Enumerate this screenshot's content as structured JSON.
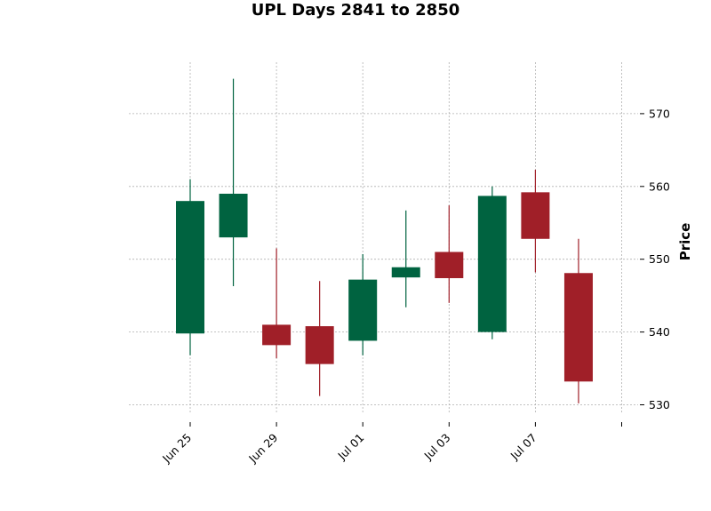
{
  "chart_data": {
    "type": "candlestick",
    "title": "UPL Days 2841 to 2850",
    "xlabel": "",
    "ylabel": "Price",
    "ylim": [
      528,
      577
    ],
    "y_ticks": [
      530,
      540,
      550,
      560,
      570
    ],
    "x_tick_labels": [
      "Jun 25",
      "Jun 29",
      "Jul 01",
      "Jul 03",
      "Jul 07",
      ""
    ],
    "grid": true,
    "y_axis_side": "right",
    "colors": {
      "up": "#006340",
      "down": "#a01f28",
      "grid": "#b0b0b0"
    },
    "candles": [
      {
        "date": "Jun 25",
        "open": 539.8,
        "high": 561.0,
        "low": 536.8,
        "close": 558.0
      },
      {
        "date": "Jun 26",
        "open": 553.0,
        "high": 574.8,
        "low": 546.3,
        "close": 559.0
      },
      {
        "date": "Jun 29",
        "open": 541.0,
        "high": 551.5,
        "low": 536.4,
        "close": 538.2
      },
      {
        "date": "Jun 30",
        "open": 540.8,
        "high": 547.0,
        "low": 531.2,
        "close": 535.6
      },
      {
        "date": "Jul 01",
        "open": 538.8,
        "high": 550.7,
        "low": 536.8,
        "close": 547.2
      },
      {
        "date": "Jul 02",
        "open": 547.5,
        "high": 556.7,
        "low": 543.4,
        "close": 548.9
      },
      {
        "date": "Jul 03",
        "open": 551.0,
        "high": 557.4,
        "low": 544.0,
        "close": 547.4
      },
      {
        "date": "Jul 06",
        "open": 540.0,
        "high": 560.0,
        "low": 539.0,
        "close": 558.7
      },
      {
        "date": "Jul 07",
        "open": 559.2,
        "high": 562.3,
        "low": 548.2,
        "close": 552.8
      },
      {
        "date": "Jul 08",
        "open": 548.1,
        "high": 552.8,
        "low": 530.2,
        "close": 533.2
      }
    ]
  }
}
